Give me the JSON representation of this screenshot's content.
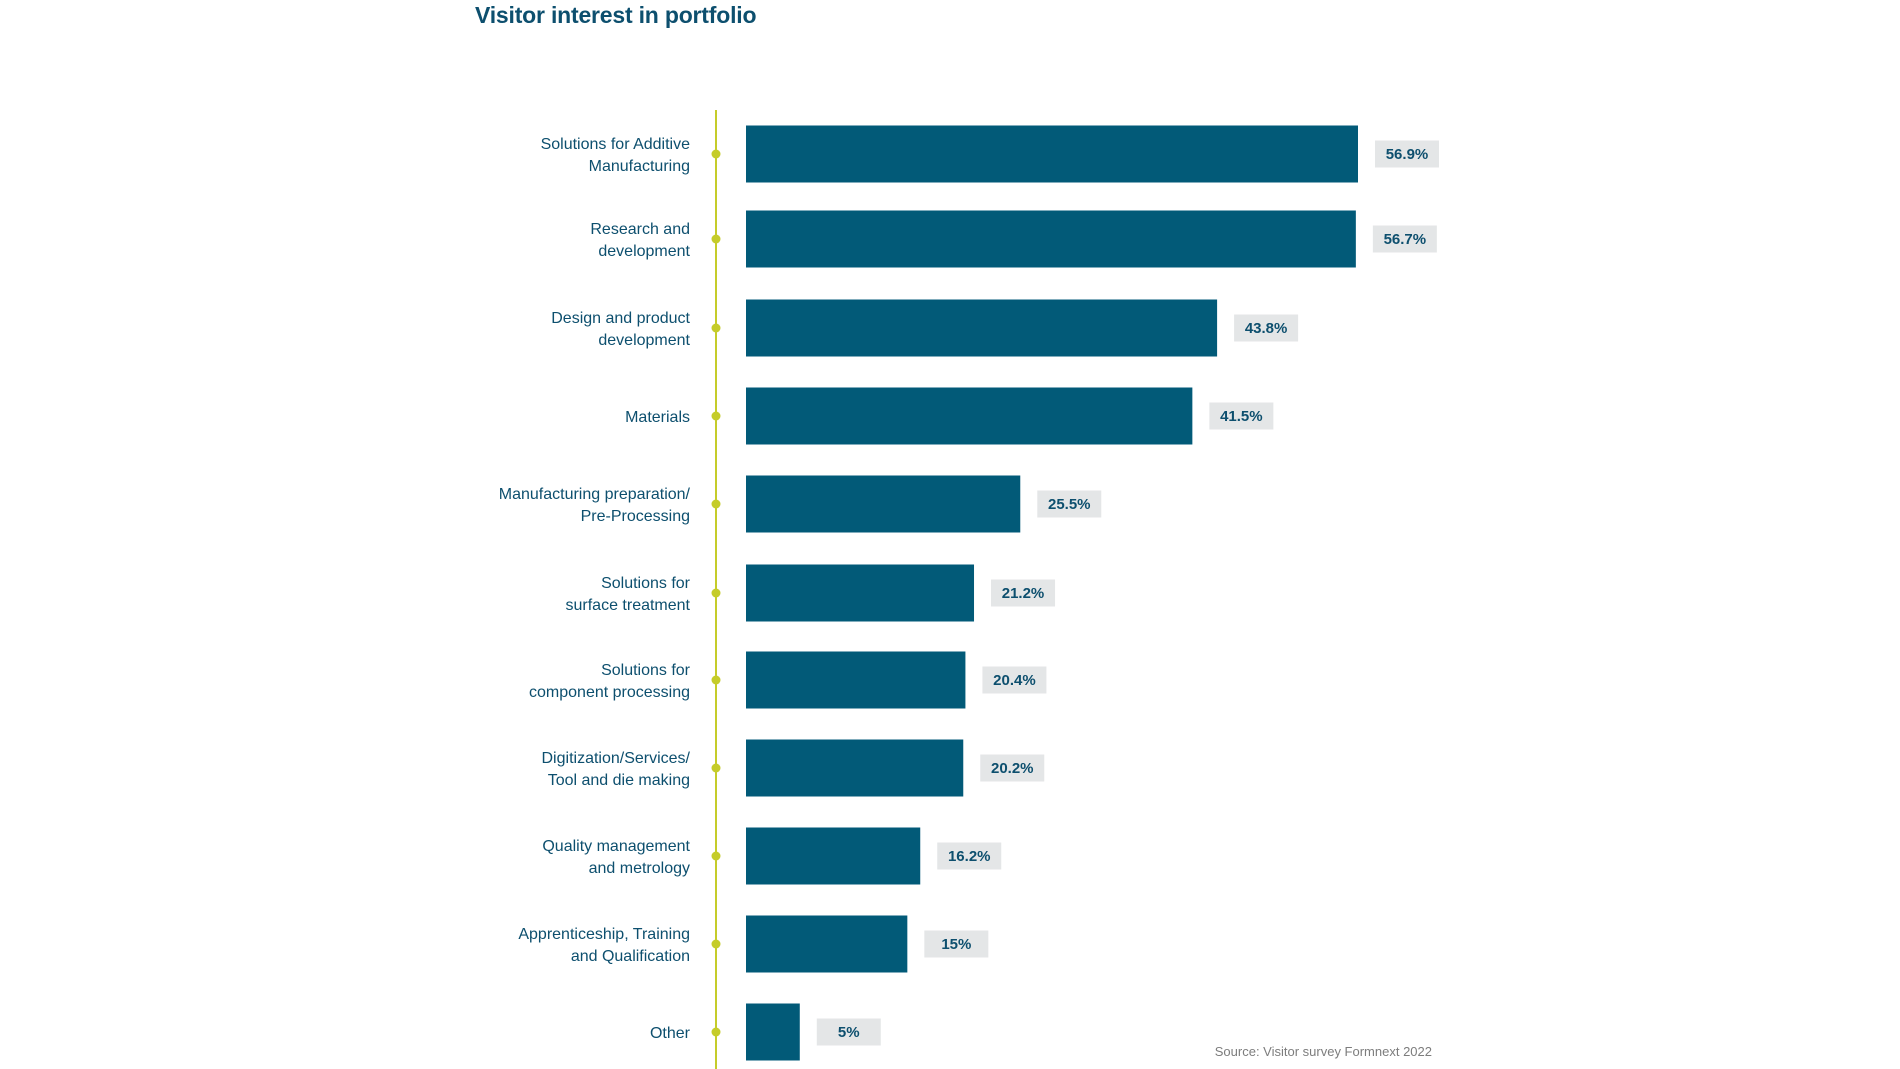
{
  "chart_data": {
    "type": "bar",
    "orientation": "horizontal",
    "title": "Visitor interest in portfolio",
    "source": "Source: Visitor survey Formnext 2022",
    "xlabel": "",
    "ylabel": "",
    "unit": "%",
    "categories": [
      [
        "Solutions for Additive",
        "Manufacturing"
      ],
      [
        "Research and",
        "development"
      ],
      [
        "Design and product",
        "development"
      ],
      [
        "Materials"
      ],
      [
        "Manufacturing preparation/",
        "Pre-Processing"
      ],
      [
        "Solutions for",
        "surface treatment"
      ],
      [
        "Solutions for",
        "component processing"
      ],
      [
        "Digitization/Services/",
        "Tool and die making"
      ],
      [
        "Quality management",
        "and metrology"
      ],
      [
        "Apprenticeship, Training",
        "and Qualification"
      ],
      [
        "Other"
      ]
    ],
    "values": [
      56.9,
      56.7,
      43.8,
      41.5,
      25.5,
      21.2,
      20.4,
      20.2,
      16.2,
      15,
      5
    ],
    "value_labels": [
      "56.9%",
      "56.7%",
      "43.8%",
      "41.5%",
      "25.5%",
      "21.2%",
      "20.4%",
      "20.2%",
      "16.2%",
      "15%",
      "5%"
    ],
    "xlim": [
      0,
      56.9
    ],
    "grid": false,
    "legend": "none",
    "colors": {
      "bar": "#025a78",
      "axis_line": "#c5cc2a",
      "axis_dot": "#c5cc2a",
      "category_label": "#0d4f6e",
      "value_label_bg": "#e4e6e7",
      "value_label_text": "#0d4f6e",
      "title": "#0d4f6e"
    }
  }
}
